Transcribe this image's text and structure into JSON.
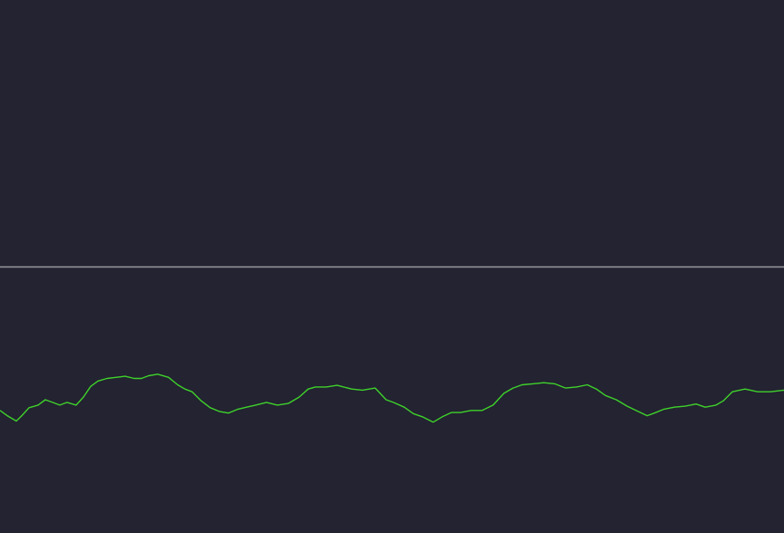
{
  "colors": {
    "background": "#232331",
    "divider": "#9a9aa2",
    "signal": "#3fd12b"
  },
  "chart_data": {
    "type": "line",
    "title": "",
    "xlabel": "",
    "ylabel": "",
    "grid": false,
    "legend": "none",
    "xlim": [
      0,
      865
    ],
    "ylim": [
      0,
      1
    ],
    "reference_lines": [
      {
        "y": 0.5
      }
    ],
    "series": [
      {
        "x": [
          0,
          8,
          18,
          24,
          32,
          42,
          50,
          58,
          66,
          74,
          84,
          92,
          100,
          108,
          118,
          128,
          138,
          148,
          156,
          164,
          174,
          186,
          196,
          204,
          212,
          222,
          232,
          242,
          252,
          262,
          272,
          282,
          294,
          306,
          318,
          330,
          340,
          348,
          360,
          372,
          388,
          400,
          414,
          426,
          434,
          446,
          456,
          466,
          478,
          488,
          498,
          508,
          520,
          532,
          544,
          556,
          566,
          576,
          588,
          600,
          612,
          624,
          636,
          648,
          658,
          668,
          680,
          692,
          704,
          714,
          722,
          732,
          744,
          756,
          768,
          778,
          790,
          798,
          808,
          822,
          836,
          850,
          865
        ],
        "y": [
          0.23,
          0.22,
          0.21,
          0.22,
          0.235,
          0.24,
          0.25,
          0.245,
          0.24,
          0.245,
          0.24,
          0.255,
          0.275,
          0.285,
          0.29,
          0.292,
          0.294,
          0.29,
          0.29,
          0.295,
          0.298,
          0.292,
          0.278,
          0.27,
          0.265,
          0.248,
          0.235,
          0.228,
          0.225,
          0.232,
          0.236,
          0.24,
          0.245,
          0.24,
          0.243,
          0.255,
          0.27,
          0.274,
          0.274,
          0.277,
          0.27,
          0.268,
          0.272,
          0.25,
          0.245,
          0.236,
          0.224,
          0.218,
          0.208,
          0.218,
          0.226,
          0.226,
          0.23,
          0.23,
          0.24,
          0.262,
          0.272,
          0.278,
          0.28,
          0.282,
          0.28,
          0.272,
          0.274,
          0.278,
          0.27,
          0.258,
          0.25,
          0.238,
          0.228,
          0.22,
          0.225,
          0.232,
          0.236,
          0.238,
          0.242,
          0.236,
          0.24,
          0.248,
          0.265,
          0.27,
          0.265,
          0.265,
          0.268
        ]
      }
    ]
  }
}
